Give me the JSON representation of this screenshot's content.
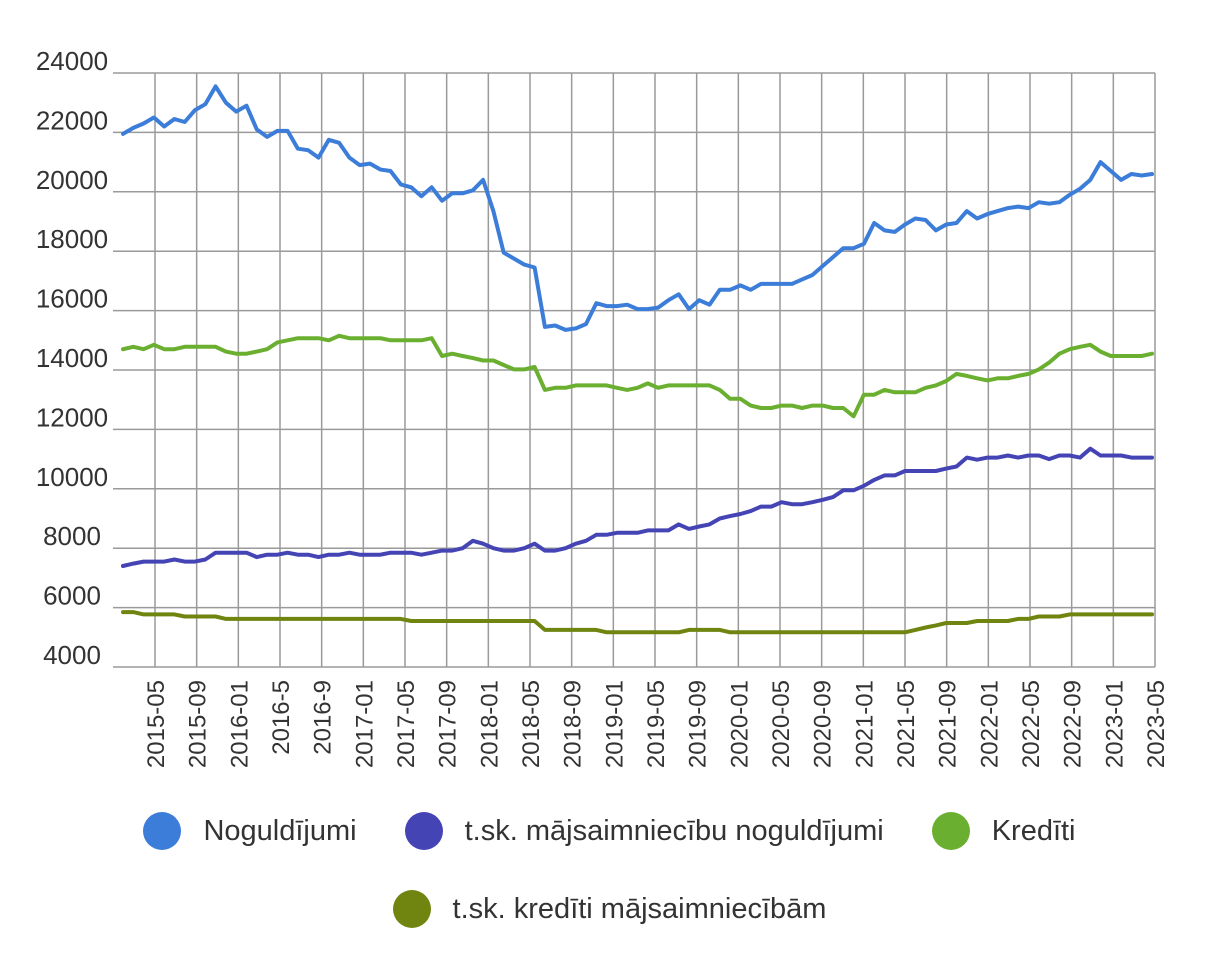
{
  "chart_data": {
    "type": "line",
    "title": "",
    "xlabel": "",
    "ylabel": "",
    "ylim": [
      4000,
      24000
    ],
    "yticks": [
      24000,
      22000,
      20000,
      18000,
      16000,
      14000,
      12000,
      10000,
      8000,
      6000,
      4000
    ],
    "xticks": [
      "2015-05",
      "2015-09",
      "2016-01",
      "2016-5",
      "2016-9",
      "2017-01",
      "2017-05",
      "2017-09",
      "2018-01",
      "2018-05",
      "2018-09",
      "2019-01",
      "2019-05",
      "2019-09",
      "2020-01",
      "2020-05",
      "2020-09",
      "2021-01",
      "2021-05",
      "2021-09",
      "2022-01",
      "2022-05",
      "2022-09",
      "2023-01",
      "2023-05"
    ],
    "grid": true,
    "legend_position": "bottom",
    "series": [
      {
        "name": "Noguldījumi",
        "color": "#3b7dd8",
        "values": [
          21950,
          22150,
          22300,
          22500,
          22200,
          22450,
          22350,
          22750,
          22950,
          23550,
          23000,
          22700,
          22900,
          22100,
          21850,
          22050,
          22050,
          21450,
          21400,
          21150,
          21750,
          21650,
          21150,
          20900,
          20950,
          20750,
          20700,
          20250,
          20150,
          19850,
          20150,
          19700,
          19950,
          19950,
          20050,
          20400,
          19350,
          17950,
          17750,
          17550,
          17450,
          15450,
          15500,
          15350,
          15400,
          15550,
          16250,
          16150,
          16150,
          16200,
          16050,
          16050,
          16100,
          16350,
          16550,
          16050,
          16350,
          16200,
          16700,
          16700,
          16850,
          16700,
          16900,
          16900,
          16900,
          16900,
          17050,
          17200,
          17500,
          17800,
          18100,
          18100,
          18250,
          18950,
          18700,
          18650,
          18900,
          19100,
          19050,
          18700,
          18900,
          18950,
          19350,
          19100,
          19250,
          19350,
          19450,
          19500,
          19450,
          19650,
          19600,
          19650,
          19900,
          20100,
          20400,
          21000,
          20700,
          20400,
          20600,
          20550,
          20600
        ]
      },
      {
        "name": "t.sk. mājsaimniecību noguldījumi",
        "color": "#4444b5",
        "values": [
          7400,
          7480,
          7550,
          7550,
          7550,
          7620,
          7550,
          7550,
          7620,
          7850,
          7850,
          7850,
          7850,
          7700,
          7780,
          7780,
          7850,
          7780,
          7780,
          7700,
          7780,
          7780,
          7850,
          7780,
          7780,
          7780,
          7850,
          7850,
          7850,
          7780,
          7850,
          7920,
          7920,
          8000,
          8250,
          8150,
          8000,
          7920,
          7920,
          8000,
          8150,
          7920,
          7920,
          8000,
          8150,
          8250,
          8450,
          8450,
          8520,
          8520,
          8520,
          8600,
          8600,
          8600,
          8800,
          8650,
          8730,
          8800,
          9000,
          9080,
          9150,
          9250,
          9400,
          9400,
          9550,
          9480,
          9480,
          9550,
          9630,
          9720,
          9950,
          9950,
          10100,
          10300,
          10450,
          10450,
          10600,
          10600,
          10600,
          10600,
          10680,
          10750,
          11050,
          10980,
          11050,
          11050,
          11120,
          11050,
          11120,
          11120,
          11000,
          11120,
          11120,
          11050,
          11350,
          11120,
          11120,
          11120,
          11050,
          11050,
          11050
        ]
      },
      {
        "name": "Kredīti",
        "color": "#6aaf30",
        "values": [
          14700,
          14780,
          14700,
          14850,
          14700,
          14700,
          14780,
          14780,
          14780,
          14780,
          14620,
          14550,
          14550,
          14620,
          14700,
          14930,
          15000,
          15070,
          15070,
          15070,
          15000,
          15150,
          15070,
          15070,
          15070,
          15070,
          15000,
          15000,
          15000,
          15000,
          15070,
          14470,
          14550,
          14470,
          14400,
          14320,
          14320,
          14170,
          14020,
          14020,
          14100,
          13330,
          13400,
          13400,
          13480,
          13480,
          13480,
          13480,
          13400,
          13330,
          13400,
          13550,
          13400,
          13480,
          13480,
          13480,
          13480,
          13480,
          13330,
          13030,
          13030,
          12800,
          12720,
          12720,
          12800,
          12800,
          12720,
          12800,
          12800,
          12720,
          12720,
          12440,
          13170,
          13170,
          13330,
          13250,
          13250,
          13250,
          13400,
          13480,
          13630,
          13870,
          13800,
          13720,
          13650,
          13720,
          13720,
          13800,
          13870,
          14020,
          14250,
          14550,
          14700,
          14780,
          14850,
          14620,
          14470,
          14470,
          14470,
          14470,
          14550
        ]
      },
      {
        "name": "t.sk. kredīti mājsaimniecībām",
        "color": "#6f8510",
        "values": [
          5850,
          5850,
          5770,
          5770,
          5770,
          5770,
          5700,
          5700,
          5700,
          5700,
          5620,
          5620,
          5620,
          5620,
          5620,
          5620,
          5620,
          5620,
          5620,
          5620,
          5620,
          5620,
          5620,
          5620,
          5620,
          5620,
          5620,
          5620,
          5550,
          5550,
          5550,
          5550,
          5550,
          5550,
          5550,
          5550,
          5550,
          5550,
          5550,
          5550,
          5550,
          5250,
          5250,
          5250,
          5250,
          5250,
          5250,
          5170,
          5170,
          5170,
          5170,
          5170,
          5170,
          5170,
          5170,
          5250,
          5250,
          5250,
          5250,
          5170,
          5170,
          5170,
          5170,
          5170,
          5170,
          5170,
          5170,
          5170,
          5170,
          5170,
          5170,
          5170,
          5170,
          5170,
          5170,
          5170,
          5170,
          5250,
          5330,
          5400,
          5480,
          5480,
          5480,
          5550,
          5550,
          5550,
          5550,
          5620,
          5620,
          5700,
          5700,
          5700,
          5770,
          5770,
          5770,
          5770,
          5770,
          5770,
          5770,
          5770,
          5770
        ]
      }
    ]
  }
}
